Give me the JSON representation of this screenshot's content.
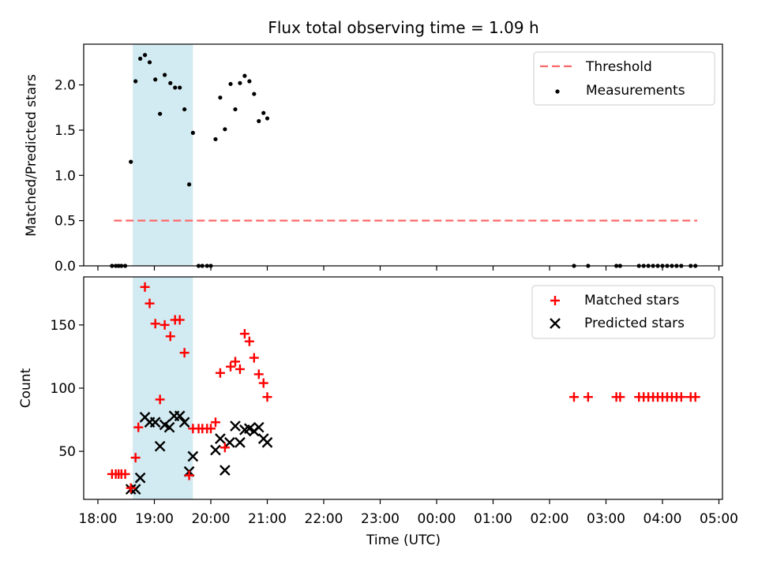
{
  "chart_data": {
    "type": "scatter",
    "title": "Flux total observing time = 1.09 h",
    "xlabel": "Time (UTC)",
    "x_ticks": [
      "18:00",
      "19:00",
      "20:00",
      "21:00",
      "22:00",
      "23:00",
      "00:00",
      "01:00",
      "02:00",
      "03:00",
      "04:00",
      "05:00"
    ],
    "highlight_span": {
      "from": "18:37",
      "to": "19:41",
      "color": "#add8e6"
    },
    "top": {
      "ylabel": "Matched/Predicted stars",
      "ylim": [
        0,
        2.45
      ],
      "y_ticks": [
        "0.0",
        "0.5",
        "1.0",
        "1.5",
        "2.0"
      ],
      "legend_position": "upper-right",
      "threshold": {
        "name": "Threshold",
        "value": 0.5,
        "x_from": "18:17",
        "x_to": "04:37",
        "color": "#ff6666"
      },
      "series": [
        {
          "name": "Measurements",
          "color": "#000000",
          "marker": "dot",
          "points": [
            [
              "18:15",
              0
            ],
            [
              "18:19",
              0
            ],
            [
              "18:22",
              0
            ],
            [
              "18:25",
              0
            ],
            [
              "18:29",
              0
            ],
            [
              "18:35",
              1.15
            ],
            [
              "18:40",
              2.04
            ],
            [
              "18:45",
              2.29
            ],
            [
              "18:50",
              2.33
            ],
            [
              "18:55",
              2.25
            ],
            [
              "19:01",
              2.06
            ],
            [
              "19:06",
              1.68
            ],
            [
              "19:11",
              2.11
            ],
            [
              "19:17",
              2.02
            ],
            [
              "19:22",
              1.97
            ],
            [
              "19:27",
              1.97
            ],
            [
              "19:32",
              1.73
            ],
            [
              "19:37",
              0.9
            ],
            [
              "19:41",
              1.47
            ],
            [
              "19:47",
              0
            ],
            [
              "19:51",
              0
            ],
            [
              "19:56",
              0
            ],
            [
              "20:00",
              0
            ],
            [
              "20:05",
              1.4
            ],
            [
              "20:10",
              1.86
            ],
            [
              "20:15",
              1.51
            ],
            [
              "20:21",
              2.01
            ],
            [
              "20:26",
              1.73
            ],
            [
              "20:31",
              2.02
            ],
            [
              "20:36",
              2.1
            ],
            [
              "20:41",
              2.04
            ],
            [
              "20:46",
              1.9
            ],
            [
              "20:51",
              1.6
            ],
            [
              "20:56",
              1.69
            ],
            [
              "21:00",
              1.63
            ],
            [
              "02:26",
              0
            ],
            [
              "02:41",
              0
            ],
            [
              "03:11",
              0
            ],
            [
              "03:15",
              0
            ],
            [
              "03:35",
              0
            ],
            [
              "03:40",
              0
            ],
            [
              "03:45",
              0
            ],
            [
              "03:50",
              0
            ],
            [
              "03:55",
              0
            ],
            [
              "04:00",
              0
            ],
            [
              "04:05",
              0
            ],
            [
              "04:10",
              0
            ],
            [
              "04:15",
              0
            ],
            [
              "04:20",
              0
            ],
            [
              "04:30",
              0
            ],
            [
              "04:35",
              0
            ]
          ]
        }
      ]
    },
    "bottom": {
      "ylabel": "Count",
      "ylim": [
        12,
        188
      ],
      "y_ticks": [
        "50",
        "100",
        "150"
      ],
      "legend_position": "upper-right",
      "series": [
        {
          "name": "Matched stars",
          "color": "#ff0000",
          "marker": "plus",
          "points": [
            [
              "18:15",
              32
            ],
            [
              "18:19",
              32
            ],
            [
              "18:22",
              32
            ],
            [
              "18:25",
              32
            ],
            [
              "18:29",
              32
            ],
            [
              "18:35",
              21
            ],
            [
              "18:40",
              45
            ],
            [
              "18:43",
              69
            ],
            [
              "18:50",
              180
            ],
            [
              "18:55",
              167
            ],
            [
              "19:01",
              151
            ],
            [
              "19:06",
              91
            ],
            [
              "19:11",
              150
            ],
            [
              "19:17",
              141
            ],
            [
              "19:22",
              154
            ],
            [
              "19:27",
              154
            ],
            [
              "19:32",
              128
            ],
            [
              "19:37",
              31
            ],
            [
              "19:41",
              68
            ],
            [
              "19:47",
              68
            ],
            [
              "19:51",
              68
            ],
            [
              "19:56",
              68
            ],
            [
              "20:00",
              68
            ],
            [
              "20:05",
              73
            ],
            [
              "20:10",
              112
            ],
            [
              "20:15",
              53
            ],
            [
              "20:21",
              117
            ],
            [
              "20:26",
              121
            ],
            [
              "20:31",
              115
            ],
            [
              "20:36",
              143
            ],
            [
              "20:41",
              137
            ],
            [
              "20:46",
              124
            ],
            [
              "20:51",
              111
            ],
            [
              "20:56",
              104
            ],
            [
              "21:00",
              93
            ],
            [
              "02:26",
              93
            ],
            [
              "02:41",
              93
            ],
            [
              "03:11",
              93
            ],
            [
              "03:15",
              93
            ],
            [
              "03:35",
              93
            ],
            [
              "03:40",
              93
            ],
            [
              "03:45",
              93
            ],
            [
              "03:50",
              93
            ],
            [
              "03:55",
              93
            ],
            [
              "04:00",
              93
            ],
            [
              "04:05",
              93
            ],
            [
              "04:10",
              93
            ],
            [
              "04:15",
              93
            ],
            [
              "04:20",
              93
            ],
            [
              "04:30",
              93
            ],
            [
              "04:35",
              93
            ]
          ]
        },
        {
          "name": "Predicted stars",
          "color": "#000000",
          "marker": "x",
          "points": [
            [
              "18:35",
              20
            ],
            [
              "18:40",
              20
            ],
            [
              "18:45",
              29
            ],
            [
              "18:50",
              77
            ],
            [
              "18:55",
              73
            ],
            [
              "19:01",
              73
            ],
            [
              "19:06",
              54
            ],
            [
              "19:11",
              71
            ],
            [
              "19:16",
              69
            ],
            [
              "19:21",
              78
            ],
            [
              "19:27",
              78
            ],
            [
              "19:32",
              73
            ],
            [
              "19:37",
              34
            ],
            [
              "19:41",
              46
            ],
            [
              "20:05",
              51
            ],
            [
              "20:10",
              60
            ],
            [
              "20:15",
              35
            ],
            [
              "20:20",
              57
            ],
            [
              "20:26",
              70
            ],
            [
              "20:31",
              57
            ],
            [
              "20:36",
              67
            ],
            [
              "20:41",
              68
            ],
            [
              "20:46",
              66
            ],
            [
              "20:51",
              69
            ],
            [
              "20:56",
              60
            ],
            [
              "21:00",
              57
            ]
          ]
        }
      ]
    }
  }
}
